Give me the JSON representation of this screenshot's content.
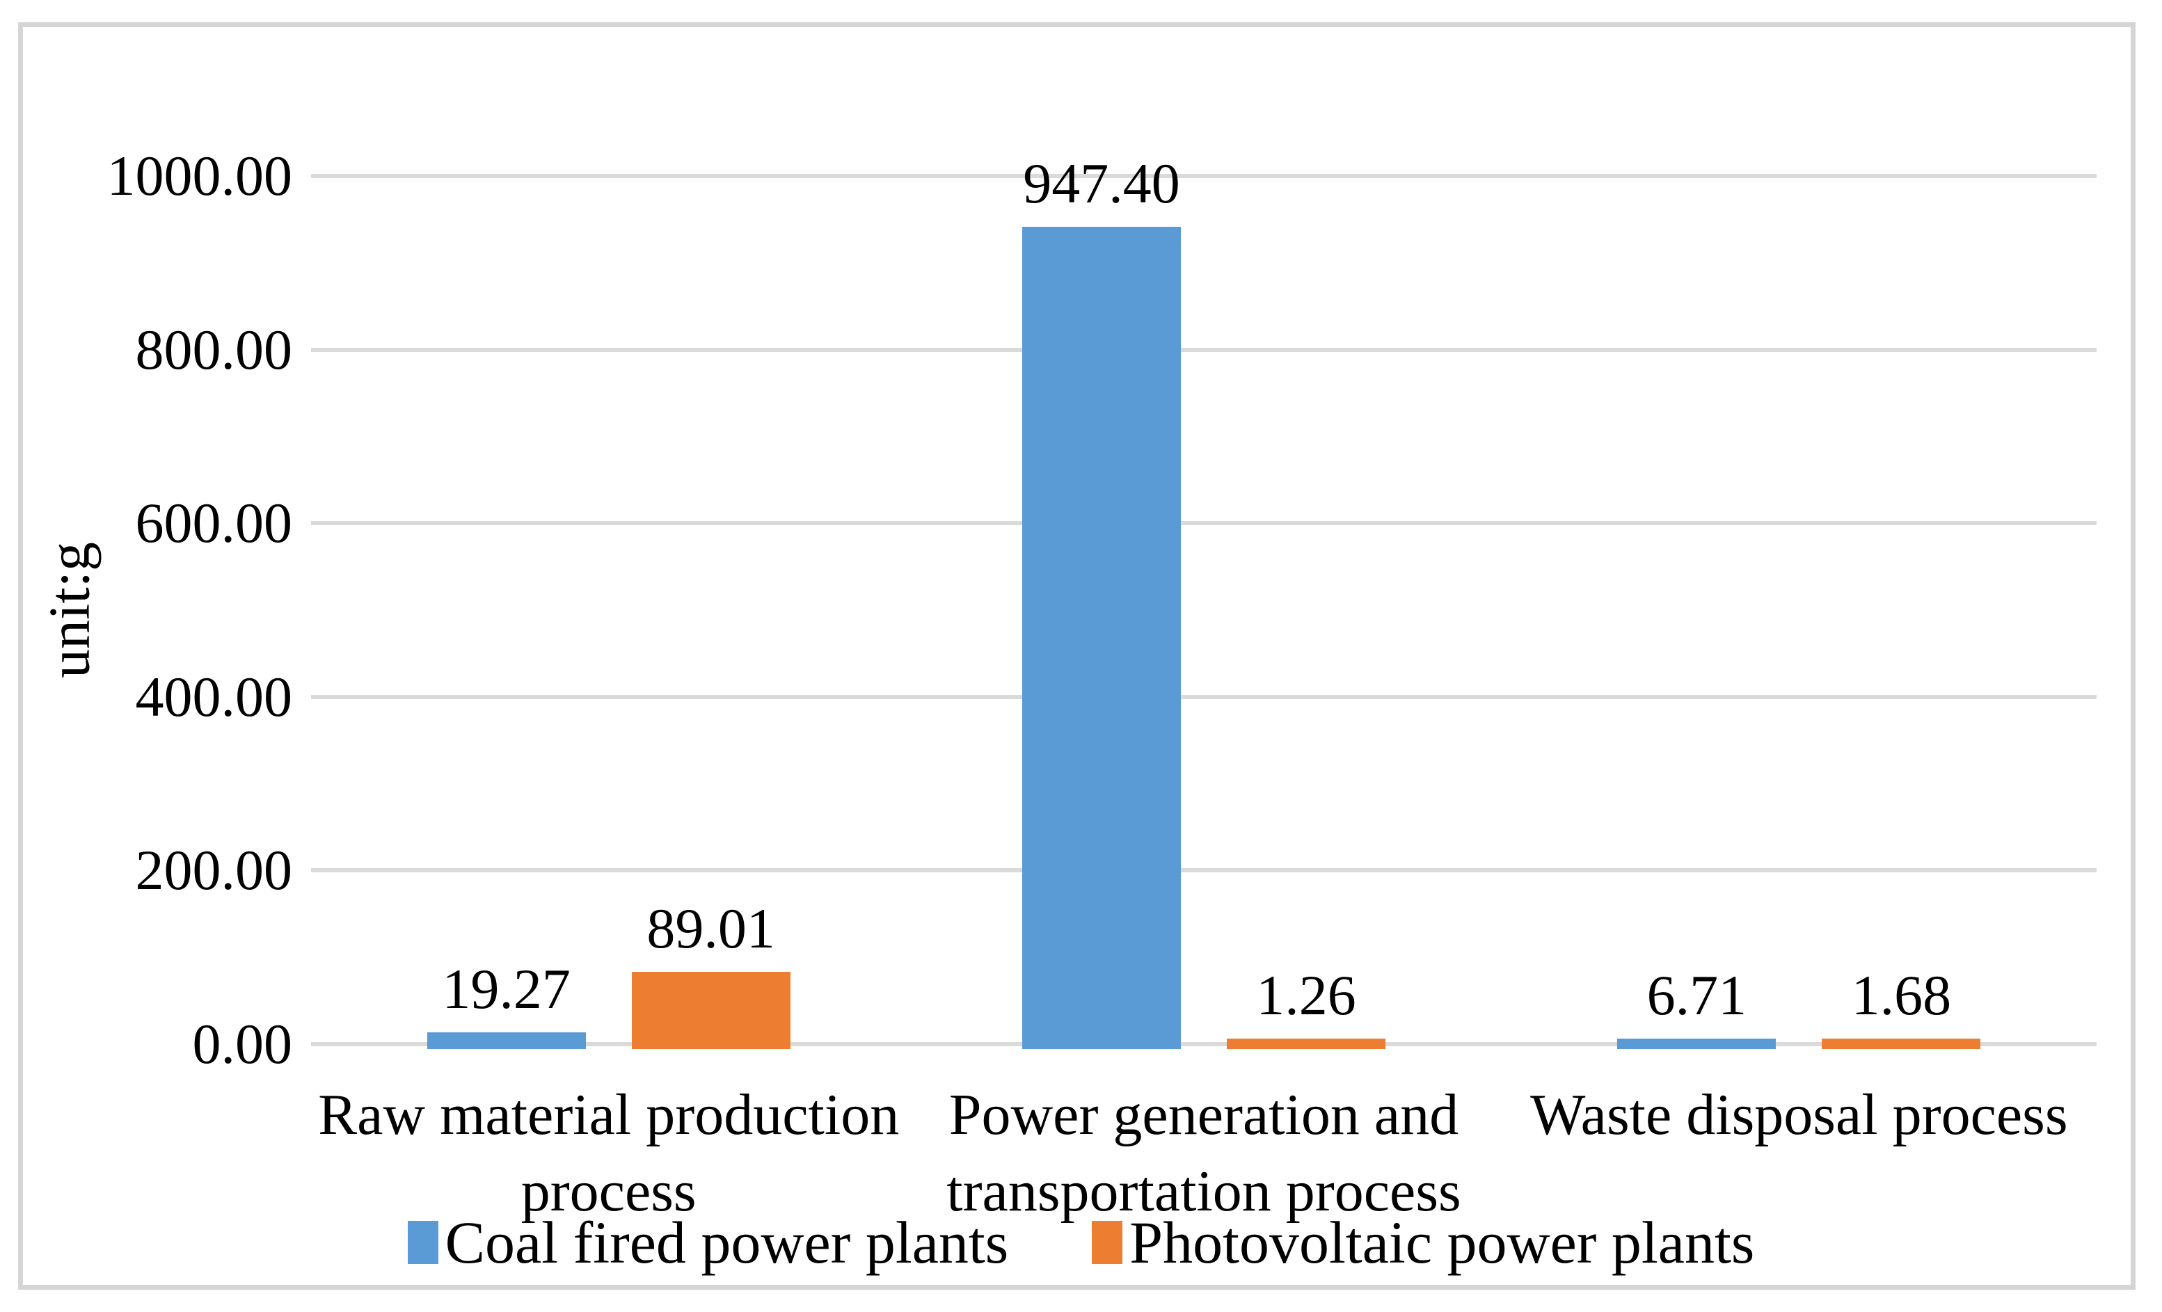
{
  "chart_data": {
    "type": "bar",
    "title": "",
    "ylabel": "unit:g",
    "xlabel": "",
    "ylim": [
      0,
      1000
    ],
    "yticks": [
      0,
      200,
      400,
      600,
      800,
      1000
    ],
    "ytick_labels": [
      "0.00",
      "200.00",
      "400.00",
      "600.00",
      "800.00",
      "1000.00"
    ],
    "grid": true,
    "legend_position": "bottom",
    "categories": [
      "Raw material production\nprocess",
      "Power generation and\ntransportation process",
      "Waste disposal process"
    ],
    "series": [
      {
        "name": "Coal fired power plants",
        "color": "#5B9BD5",
        "values": [
          19.27,
          947.4,
          6.71
        ],
        "labels": [
          "19.27",
          "947.40",
          "6.71"
        ]
      },
      {
        "name": "Photovoltaic power plants",
        "color": "#ED7D31",
        "values": [
          89.01,
          1.26,
          1.68
        ],
        "labels": [
          "89.01",
          "1.26",
          "1.68"
        ]
      }
    ],
    "colors": {
      "gridline": "#DADADA",
      "frame_border": "#D5D5D5",
      "text": "#000000",
      "background": "#FFFFFF"
    }
  }
}
